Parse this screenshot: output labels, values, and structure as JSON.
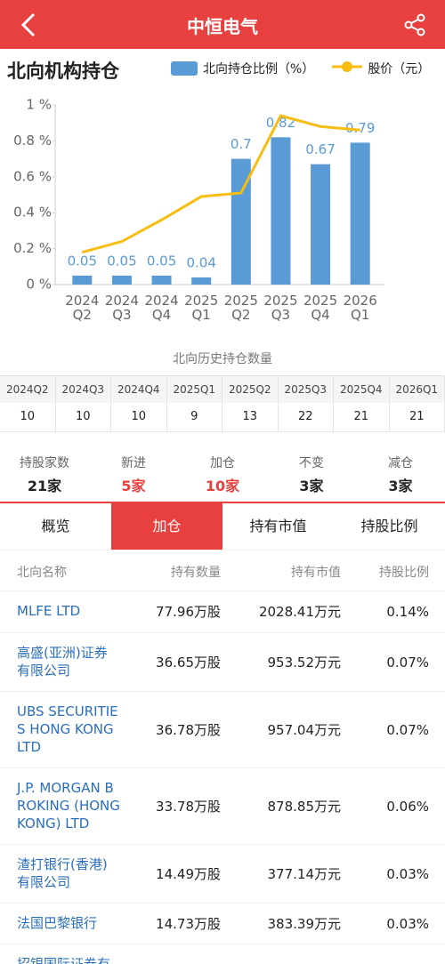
{
  "header": {
    "title": "中恒电气"
  },
  "section_title": "北向机构持仓",
  "chart_data": {
    "type": "combo",
    "categories": [
      "2024 Q2",
      "2024 Q3",
      "2024 Q4",
      "2025 Q1",
      "2025 Q2",
      "2025 Q3",
      "2025 Q4",
      "2026 Q1"
    ],
    "series": [
      {
        "name": "北向持仓比例（%）",
        "type": "bar",
        "color": "#5b9bd5",
        "values": [
          0.05,
          0.05,
          0.05,
          0.04,
          0.7,
          0.82,
          0.67,
          0.79
        ]
      },
      {
        "name": "股价（元）",
        "type": "line",
        "color": "#f7bd12",
        "values": [
          0.18,
          0.24,
          0.36,
          0.49,
          0.51,
          0.94,
          0.88,
          0.86
        ]
      }
    ],
    "ylim": [
      0,
      1
    ],
    "yticks": [
      {
        "value": 0,
        "label": "0 %"
      },
      {
        "value": 0.2,
        "label": "0.2 %"
      },
      {
        "value": 0.4,
        "label": "0.4 %"
      },
      {
        "value": 0.6,
        "label": "0.6 %"
      },
      {
        "value": 0.8,
        "label": "0.8 %"
      },
      {
        "value": 1,
        "label": "1 %"
      }
    ],
    "grid": false,
    "data_labels": true
  },
  "history": {
    "title": "北向历史持仓数量",
    "headers": [
      "2024Q2",
      "2024Q3",
      "2024Q4",
      "2025Q1",
      "2025Q2",
      "2025Q3",
      "2025Q4",
      "2026Q1"
    ],
    "values": [
      10,
      10,
      10,
      9,
      13,
      22,
      21,
      21
    ]
  },
  "stats": [
    {
      "label": "持股家数",
      "value": "21家",
      "color": "#222222"
    },
    {
      "label": "新进",
      "value": "5家",
      "color": "#e8403f"
    },
    {
      "label": "加仓",
      "value": "10家",
      "color": "#e8403f"
    },
    {
      "label": "不变",
      "value": "3家",
      "color": "#222222"
    },
    {
      "label": "减仓",
      "value": "3家",
      "color": "#222222"
    }
  ],
  "tabs": {
    "items": [
      "概览",
      "加仓",
      "持有市值",
      "持股比例"
    ],
    "active": 1
  },
  "list": {
    "columns": [
      "北向名称",
      "持有数量",
      "持有市值",
      "持股比例"
    ],
    "rows": [
      [
        "MLFE LTD",
        "77.96万股",
        "2028.41万元",
        "0.14%"
      ],
      [
        "高盛(亚洲)证券有限公司",
        "36.65万股",
        "953.52万元",
        "0.07%"
      ],
      [
        "UBS SECURITIES HONG KONG LTD",
        "36.78万股",
        "957.04万元",
        "0.07%"
      ],
      [
        "J.P. MORGAN BROKING (HONG KONG) LTD",
        "33.78万股",
        "878.85万元",
        "0.06%"
      ],
      [
        "渣打银行(香港)有限公司",
        "14.49万股",
        "377.14万元",
        "0.03%"
      ],
      [
        "法国巴黎银行",
        "14.73万股",
        "383.39万元",
        "0.03%"
      ],
      [
        "招银国际证券有"
      ]
    ]
  }
}
